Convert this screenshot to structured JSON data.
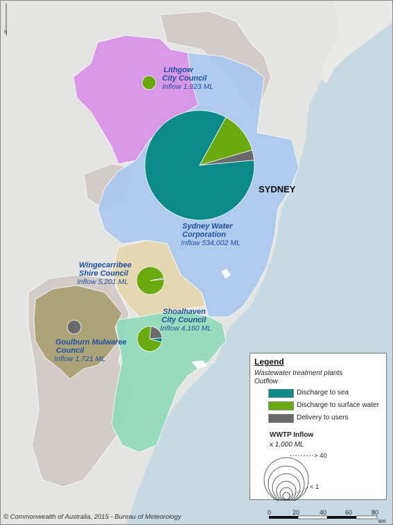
{
  "map": {
    "labels": {
      "lithgow": {
        "name_line1": "Lithgow",
        "name_line2": "City Council",
        "inflow": "Inflow  1,923  ML"
      },
      "sydney_water": {
        "name_line1": "Sydney Water",
        "name_line2": "Corporation",
        "inflow": "Inflow  534,002  ML"
      },
      "wingecarribee": {
        "name_line1": "Wingecarribee",
        "name_line2": "Shire Council",
        "inflow": "Inflow  5,201  ML"
      },
      "shoalhaven": {
        "name_line1": "Shoalhaven",
        "name_line2": "City Council",
        "inflow": "Inflow  4,160  ML"
      },
      "goulburn": {
        "name_line1": "Goulburn Mulwaree",
        "name_line2": "Council",
        "inflow": "Inflow  1,721  ML"
      },
      "city": "SYDNEY"
    },
    "north_label": "N"
  },
  "pies": {
    "lithgow": {
      "sea": 0,
      "surface": 1,
      "users": 0
    },
    "sydney_water": {
      "sea": 0.845,
      "surface": 0.125,
      "users": 0.03
    },
    "wingecarribee": {
      "sea": 0,
      "surface": 0.985,
      "users": 0.015
    },
    "shoalhaven": {
      "sea": 0.06,
      "surface": 0.72,
      "users": 0.22
    },
    "goulburn": {
      "sea": 0,
      "surface": 0,
      "users": 1
    }
  },
  "colors": {
    "sea": "#0b8a8a",
    "surface": "#6aaa10",
    "users": "#6a6a6a",
    "region_lithgow": "#d78ee8",
    "region_sydney": "#a7c8ee",
    "region_wingecarribee": "#e6d5ae",
    "region_shoalhaven": "#8fd9b9",
    "region_goulburn": "#a79e70",
    "region_other": "#cfc8c5",
    "ocean": "#c7d9e3"
  },
  "legend": {
    "title": "Legend",
    "subtitle1": "Wastewater treatment plants",
    "subtitle2": "Outflow",
    "items": [
      {
        "label": "Discharge to sea"
      },
      {
        "label": "Discharge to surface water"
      },
      {
        "label": "Delivery to users"
      }
    ],
    "inflow_title": "WWTP Inflow",
    "inflow_unit": "x 1,000 ML",
    "max_label": "> 40",
    "min_label": "< 1"
  },
  "scalebar": {
    "ticks": [
      "0",
      "20",
      "40",
      "60",
      "80"
    ],
    "unit": "km"
  },
  "credit": "© Commonwealth of Australia, 2015 - Bureau of Meteorology"
}
